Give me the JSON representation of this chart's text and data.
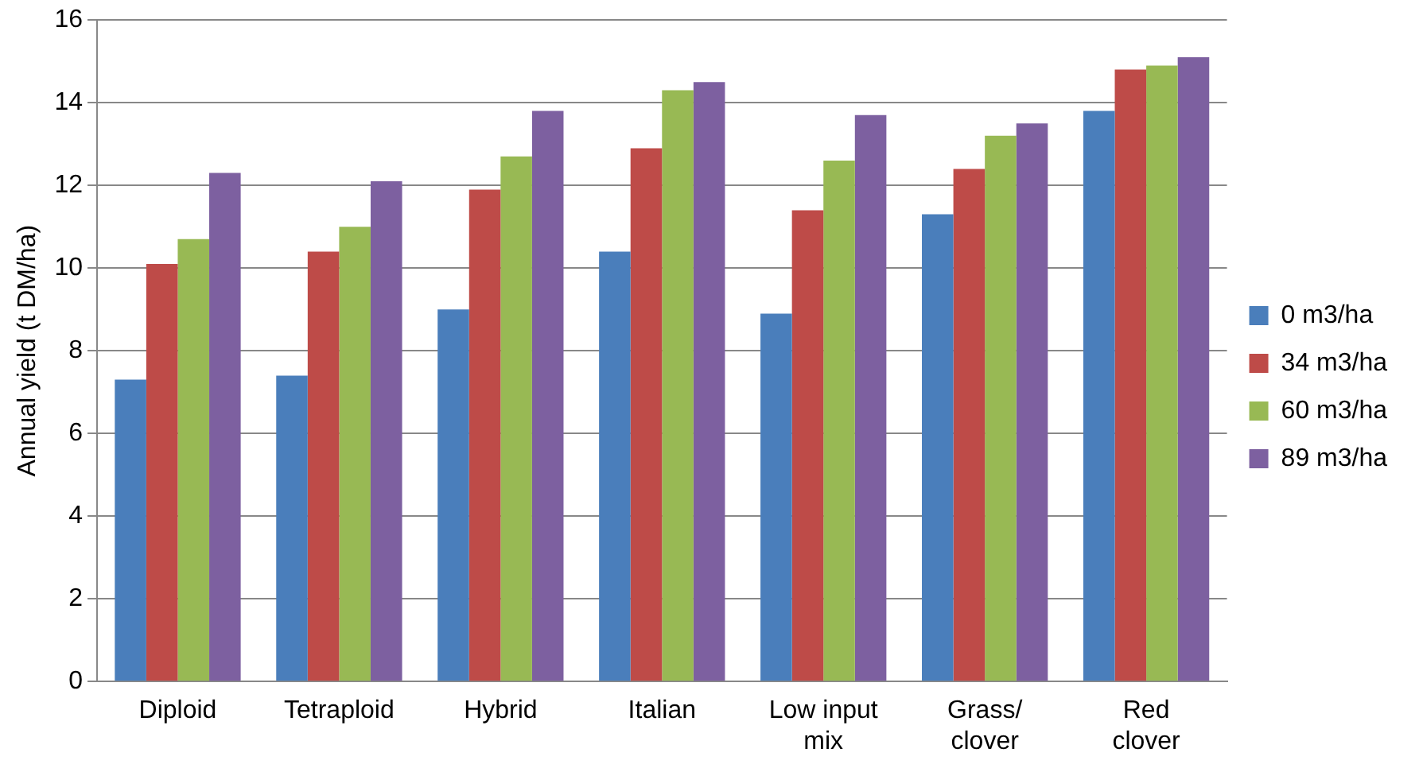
{
  "chart_data": {
    "type": "bar",
    "ylabel": "Annual yield (t DM/ha)",
    "categories": [
      "Diploid",
      "Tetraploid",
      "Hybrid",
      "Italian",
      "Low input\nmix",
      "Grass/\nclover",
      "Red\nclover"
    ],
    "series": [
      {
        "name": "0 m3/ha",
        "color": "#4a7ebb",
        "values": [
          7.3,
          7.4,
          9.0,
          10.4,
          8.9,
          11.3,
          13.8
        ]
      },
      {
        "name": "34 m3/ha",
        "color": "#be4b48",
        "values": [
          10.1,
          10.4,
          11.9,
          12.9,
          11.4,
          12.4,
          14.8
        ]
      },
      {
        "name": "60 m3/ha",
        "color": "#98b954",
        "values": [
          10.7,
          11.0,
          12.7,
          14.3,
          12.6,
          13.2,
          14.9
        ]
      },
      {
        "name": "89 m3/ha",
        "color": "#7d60a0",
        "values": [
          12.3,
          12.1,
          13.8,
          14.5,
          13.7,
          13.5,
          15.1
        ]
      }
    ],
    "ylim": [
      0,
      16
    ],
    "yticks": [
      0,
      2,
      4,
      6,
      8,
      10,
      12,
      14,
      16
    ],
    "grid": "y",
    "legend": "right"
  }
}
